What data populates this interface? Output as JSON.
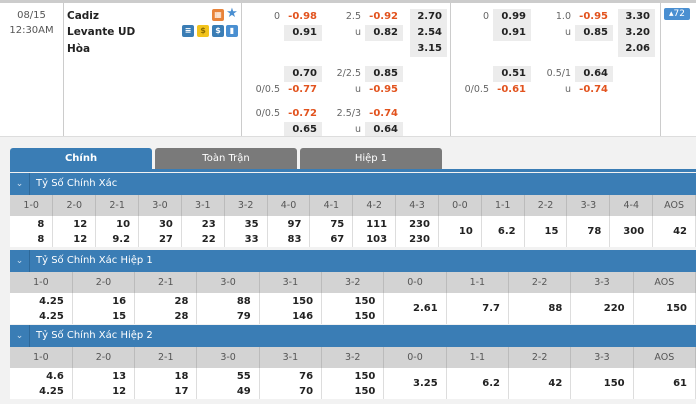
{
  "match": {
    "date": "08/15",
    "time": "12:30AM",
    "home": "Cadiz",
    "away": "Levante UD",
    "draw": "Hòa",
    "badge": "72",
    "icons": [
      "live-stream-icon",
      "favorite-star-icon",
      "stats-table-icon",
      "coin-icon",
      "dollar-icon",
      "chart-icon"
    ]
  },
  "odds": [
    {
      "label": "0",
      "v": "-0.98",
      "neg": true,
      "row": 0,
      "col": "h1l"
    },
    {
      "label": "",
      "v": "0.91",
      "row": 1,
      "col": "h1l"
    },
    {
      "label": "2.5",
      "v": "-0.92",
      "neg": true,
      "row": 0,
      "col": "o1l"
    },
    {
      "label": "u",
      "v": "0.82",
      "row": 1,
      "col": "o1l"
    },
    {
      "label": "",
      "v": "2.70",
      "row": 0,
      "col": "x1"
    },
    {
      "label": "",
      "v": "2.54",
      "row": 1,
      "col": "x1"
    },
    {
      "label": "",
      "v": "3.15",
      "row": 2,
      "col": "x1"
    },
    {
      "label": "",
      "v": "0.70",
      "row": 3,
      "col": "h1l"
    },
    {
      "label": "0/0.5",
      "v": "-0.77",
      "neg": true,
      "row": 4,
      "col": "h1l"
    },
    {
      "label": "2/2.5",
      "v": "0.85",
      "row": 3,
      "col": "o1l"
    },
    {
      "label": "u",
      "v": "-0.95",
      "neg": true,
      "row": 4,
      "col": "o1l"
    },
    {
      "label": "0/0.5",
      "v": "-0.72",
      "neg": true,
      "row": 5,
      "col": "h1l"
    },
    {
      "label": "",
      "v": "0.65",
      "row": 6,
      "col": "h1l"
    },
    {
      "label": "2.5/3",
      "v": "-0.74",
      "neg": true,
      "row": 5,
      "col": "o1l"
    },
    {
      "label": "u",
      "v": "0.64",
      "row": 6,
      "col": "o1l"
    },
    {
      "label": "0",
      "v": "0.99",
      "row": 0,
      "col": "h2l"
    },
    {
      "label": "",
      "v": "0.91",
      "row": 1,
      "col": "h2l"
    },
    {
      "label": "1.0",
      "v": "-0.95",
      "neg": true,
      "row": 0,
      "col": "o2l"
    },
    {
      "label": "u",
      "v": "0.85",
      "row": 1,
      "col": "o2l"
    },
    {
      "label": "",
      "v": "3.30",
      "row": 0,
      "col": "x2"
    },
    {
      "label": "",
      "v": "3.20",
      "row": 1,
      "col": "x2"
    },
    {
      "label": "",
      "v": "2.06",
      "row": 2,
      "col": "x2"
    },
    {
      "label": "",
      "v": "0.51",
      "row": 3,
      "col": "h2l"
    },
    {
      "label": "0/0.5",
      "v": "-0.61",
      "neg": true,
      "row": 4,
      "col": "h2l"
    },
    {
      "label": "0.5/1",
      "v": "0.64",
      "row": 3,
      "col": "o2l"
    },
    {
      "label": "u",
      "v": "-0.74",
      "neg": true,
      "row": 4,
      "col": "o2l"
    }
  ],
  "tabs": [
    "Chính",
    "Toàn Trận",
    "Hiệp 1"
  ],
  "sections": [
    {
      "title": "Tỷ Số Chính Xác",
      "headers": [
        "1-0",
        "2-0",
        "2-1",
        "3-0",
        "3-1",
        "3-2",
        "4-0",
        "4-1",
        "4-2",
        "4-3",
        "0-0",
        "1-1",
        "2-2",
        "3-3",
        "4-4",
        "AOS"
      ],
      "top": [
        "8",
        "12",
        "10",
        "30",
        "23",
        "35",
        "97",
        "75",
        "111",
        "230"
      ],
      "bottom": [
        "8",
        "12",
        "9.2",
        "27",
        "22",
        "33",
        "83",
        "67",
        "103",
        "230"
      ],
      "single": [
        "10",
        "6.2",
        "15",
        "78",
        "300",
        "42"
      ]
    },
    {
      "title": "Tỷ Số Chính Xác Hiệp 1",
      "headers": [
        "1-0",
        "2-0",
        "2-1",
        "3-0",
        "3-1",
        "3-2",
        "0-0",
        "1-1",
        "2-2",
        "3-3",
        "AOS"
      ],
      "top": [
        "4.25",
        "16",
        "28",
        "88",
        "150",
        "150"
      ],
      "bottom": [
        "4.25",
        "15",
        "28",
        "79",
        "146",
        "150"
      ],
      "single": [
        "2.61",
        "7.7",
        "88",
        "220",
        "150"
      ]
    },
    {
      "title": "Tỷ Số Chính Xác Hiệp 2",
      "headers": [
        "1-0",
        "2-0",
        "2-1",
        "3-0",
        "3-1",
        "3-2",
        "0-0",
        "1-1",
        "2-2",
        "3-3",
        "AOS"
      ],
      "top": [
        "4.6",
        "13",
        "18",
        "55",
        "76",
        "150"
      ],
      "bottom": [
        "4.25",
        "12",
        "17",
        "49",
        "70",
        "150"
      ],
      "single": [
        "3.25",
        "6.2",
        "42",
        "150",
        "61"
      ]
    }
  ],
  "colors": {
    "accent": "#3a7db5",
    "negative": "#e2531e",
    "tab_inactive": "#7a7a7a"
  }
}
